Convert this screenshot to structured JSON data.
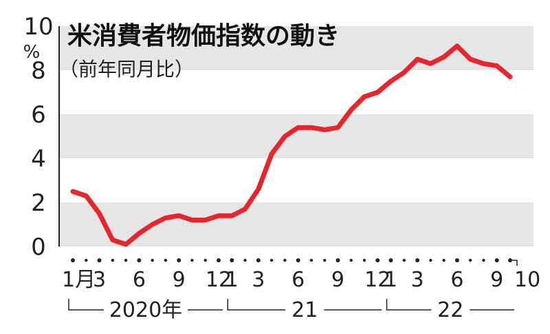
{
  "chart_data": {
    "type": "line",
    "title": "米消費者物価指数の動き",
    "subtitle": "（前年同月比）",
    "y_unit": "%",
    "ylim": [
      0,
      10
    ],
    "y_ticks": [
      0,
      2,
      4,
      6,
      8,
      10
    ],
    "grid_bands": true,
    "x_tick_labels": [
      {
        "index": 0,
        "label": "1月"
      },
      {
        "index": 2,
        "label": "3"
      },
      {
        "index": 5,
        "label": "6"
      },
      {
        "index": 8,
        "label": "9"
      },
      {
        "index": 11,
        "label": "12"
      },
      {
        "index": 12,
        "label": "1"
      },
      {
        "index": 14,
        "label": "3"
      },
      {
        "index": 17,
        "label": "6"
      },
      {
        "index": 20,
        "label": "9"
      },
      {
        "index": 23,
        "label": "12"
      },
      {
        "index": 24,
        "label": "1"
      },
      {
        "index": 26,
        "label": "3"
      },
      {
        "index": 29,
        "label": "6"
      },
      {
        "index": 32,
        "label": "9"
      },
      {
        "index": 33,
        "label": "10"
      }
    ],
    "year_groups": [
      {
        "label": "2020年",
        "start": 0,
        "end": 11
      },
      {
        "label": "21",
        "start": 12,
        "end": 23
      },
      {
        "label": "22",
        "start": 24,
        "end": 33
      }
    ],
    "series": [
      {
        "color": "#e5262d",
        "values": [
          2.5,
          2.3,
          1.5,
          0.3,
          0.1,
          0.6,
          1.0,
          1.3,
          1.4,
          1.2,
          1.2,
          1.4,
          1.4,
          1.7,
          2.6,
          4.2,
          5.0,
          5.4,
          5.4,
          5.3,
          5.4,
          6.2,
          6.8,
          7.0,
          7.5,
          7.9,
          8.5,
          8.3,
          8.6,
          9.1,
          8.5,
          8.3,
          8.2,
          7.7
        ]
      }
    ]
  }
}
